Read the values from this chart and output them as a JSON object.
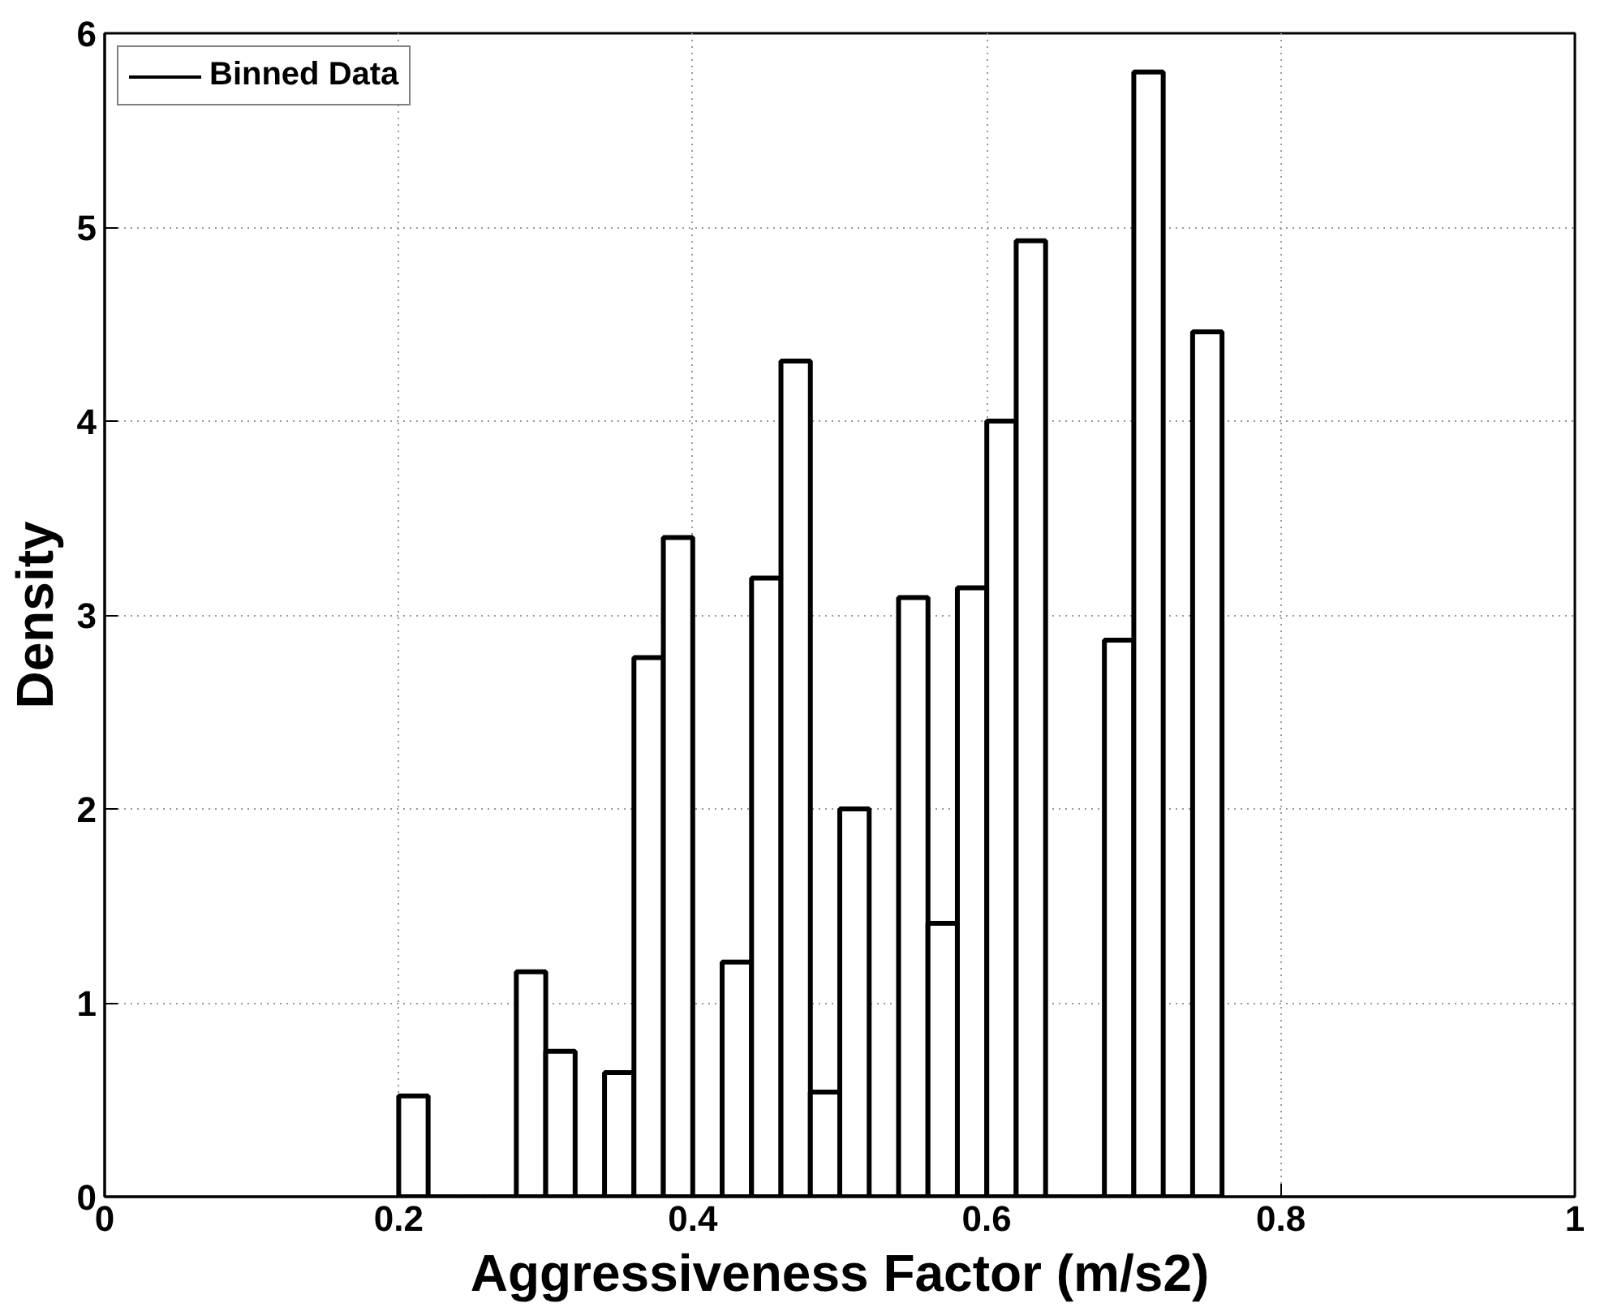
{
  "chart_data": {
    "type": "histogram",
    "xlabel": "Aggressiveness Factor (m/s2)",
    "ylabel": "Density",
    "bins": [
      0.2,
      0.22,
      0.24,
      0.26,
      0.28,
      0.3,
      0.32,
      0.34,
      0.36,
      0.38,
      0.4,
      0.42,
      0.44,
      0.46,
      0.48,
      0.5,
      0.52,
      0.54,
      0.56,
      0.58,
      0.6,
      0.62,
      0.64,
      0.66,
      0.68,
      0.7,
      0.72,
      0.74,
      0.76
    ],
    "series": [
      {
        "name": "Binned Data",
        "color": "#000000",
        "values": [
          0.52,
          0,
          0,
          0,
          1.16,
          0.75,
          0,
          0.64,
          2.78,
          3.4,
          0,
          1.21,
          3.19,
          4.31,
          0.54,
          2.0,
          0,
          3.09,
          1.41,
          3.14,
          4.0,
          4.93,
          0,
          0,
          2.87,
          5.8,
          0,
          4.46
        ]
      }
    ],
    "xlim": [
      0,
      1
    ],
    "ylim": [
      0,
      6
    ],
    "xticks": [
      0,
      0.2,
      0.4,
      0.6,
      0.8,
      1
    ],
    "yticks": [
      0,
      1,
      2,
      3,
      4,
      5,
      6
    ],
    "grid": true,
    "legend": "top left"
  }
}
